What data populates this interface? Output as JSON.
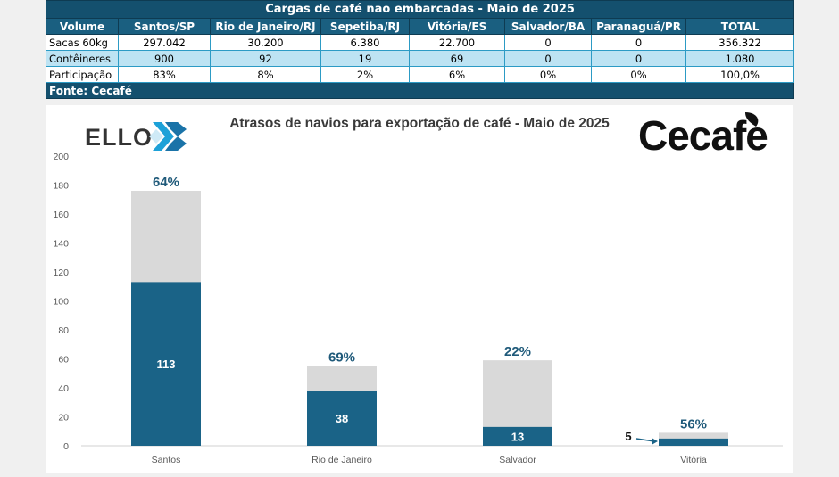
{
  "table": {
    "title": "Cargas de café não embarcadas - Maio de 2025",
    "headers": [
      "Volume",
      "Santos/SP",
      "Rio de Janeiro/RJ",
      "Sepetiba/RJ",
      "Vitória/ES",
      "Salvador/BA",
      "Paranaguá/PR",
      "TOTAL"
    ],
    "rows": [
      [
        "Sacas 60kg",
        "297.042",
        "30.200",
        "6.380",
        "22.700",
        "0",
        "0",
        "356.322"
      ],
      [
        "Contêineres",
        "900",
        "92",
        "19",
        "69",
        "0",
        "0",
        "1.080"
      ],
      [
        "Participação",
        "83%",
        "8%",
        "2%",
        "6%",
        "0%",
        "0%",
        "100,0%"
      ]
    ],
    "source": "Fonte: Cecafé"
  },
  "logos": {
    "left": "ELLO",
    "right": "Cecafe"
  },
  "colors": {
    "delayed": "#1a6387",
    "total": "#d9d9d9",
    "header": "#14506e",
    "row_alt": "#bde3f3",
    "pct_label": "#1f5a7a"
  },
  "chart_data": {
    "type": "bar",
    "title": "Atrasos de navios para exportação de café - Maio de 2025",
    "categories": [
      "Santos",
      "Rio de Janeiro",
      "Salvador",
      "Vitória"
    ],
    "series": [
      {
        "values": [
          113,
          38,
          13,
          5
        ]
      },
      {
        "values": [
          176,
          55,
          59,
          9
        ]
      }
    ],
    "data_labels": [
      "113",
      "38",
      "13",
      "5"
    ],
    "percent_labels": [
      "64%",
      "69%",
      "22%",
      "56%"
    ],
    "stacked": "overlay",
    "ylim": [
      0,
      200
    ],
    "yticks": [
      0,
      20,
      40,
      60,
      80,
      100,
      120,
      140,
      160,
      180,
      200
    ],
    "xlabel": "",
    "ylabel": "",
    "grid": false,
    "legend": "none"
  }
}
